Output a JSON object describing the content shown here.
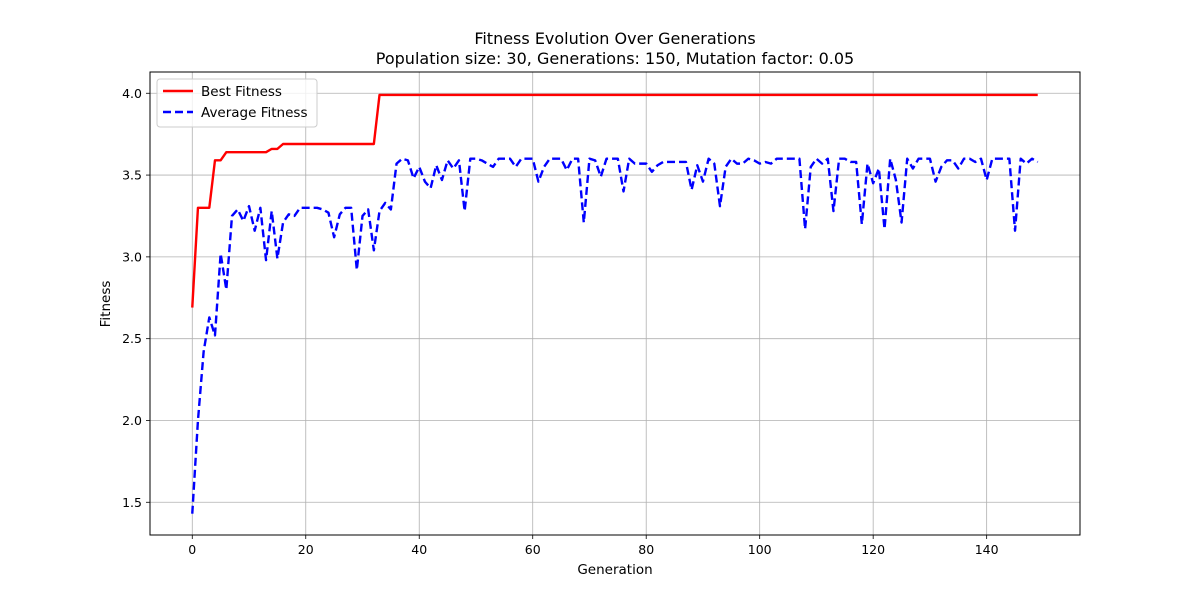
{
  "chart_data": {
    "type": "line",
    "title": "Fitness Evolution Over Generations",
    "subtitle": "Population size: 30, Generations: 150, Mutation factor: 0.05",
    "xlabel": "Generation",
    "ylabel": "Fitness",
    "xlim": [
      -7.45,
      156.45
    ],
    "ylim": [
      1.3,
      4.13
    ],
    "xticks": [
      0,
      20,
      40,
      60,
      80,
      100,
      120,
      140
    ],
    "xtick_labels": [
      "0",
      "20",
      "40",
      "60",
      "80",
      "100",
      "120",
      "140"
    ],
    "yticks": [
      1.5,
      2.0,
      2.5,
      3.0,
      3.5,
      4.0
    ],
    "ytick_labels": [
      "1.5",
      "2.0",
      "2.5",
      "3.0",
      "3.5",
      "4.0"
    ],
    "grid": true,
    "legend_position": "upper-left",
    "x_start": 0,
    "series": [
      {
        "name": "Best Fitness",
        "color": "#ff0000",
        "style": "solid",
        "values": [
          2.69,
          3.3,
          3.3,
          3.3,
          3.59,
          3.59,
          3.64,
          3.64,
          3.64,
          3.64,
          3.64,
          3.64,
          3.64,
          3.64,
          3.66,
          3.66,
          3.69,
          3.69,
          3.69,
          3.69,
          3.69,
          3.69,
          3.69,
          3.69,
          3.69,
          3.69,
          3.69,
          3.69,
          3.69,
          3.69,
          3.69,
          3.69,
          3.69,
          3.99,
          3.99,
          3.99,
          3.99,
          3.99,
          3.99,
          3.99,
          3.99,
          3.99,
          3.99,
          3.99,
          3.99,
          3.99,
          3.99,
          3.99,
          3.99,
          3.99,
          3.99,
          3.99,
          3.99,
          3.99,
          3.99,
          3.99,
          3.99,
          3.99,
          3.99,
          3.99,
          3.99,
          3.99,
          3.99,
          3.99,
          3.99,
          3.99,
          3.99,
          3.99,
          3.99,
          3.99,
          3.99,
          3.99,
          3.99,
          3.99,
          3.99,
          3.99,
          3.99,
          3.99,
          3.99,
          3.99,
          3.99,
          3.99,
          3.99,
          3.99,
          3.99,
          3.99,
          3.99,
          3.99,
          3.99,
          3.99,
          3.99,
          3.99,
          3.99,
          3.99,
          3.99,
          3.99,
          3.99,
          3.99,
          3.99,
          3.99,
          3.99,
          3.99,
          3.99,
          3.99,
          3.99,
          3.99,
          3.99,
          3.99,
          3.99,
          3.99,
          3.99,
          3.99,
          3.99,
          3.99,
          3.99,
          3.99,
          3.99,
          3.99,
          3.99,
          3.99,
          3.99,
          3.99,
          3.99,
          3.99,
          3.99,
          3.99,
          3.99,
          3.99,
          3.99,
          3.99,
          3.99,
          3.99,
          3.99,
          3.99,
          3.99,
          3.99,
          3.99,
          3.99,
          3.99,
          3.99,
          3.99,
          3.99,
          3.99,
          3.99,
          3.99,
          3.99,
          3.99,
          3.99,
          3.99,
          3.99
        ]
      },
      {
        "name": "Average Fitness",
        "color": "#0000ff",
        "style": "dashed",
        "values": [
          1.43,
          2.0,
          2.42,
          2.63,
          2.52,
          3.02,
          2.8,
          3.25,
          3.29,
          3.22,
          3.31,
          3.16,
          3.3,
          2.98,
          3.28,
          2.99,
          3.21,
          3.26,
          3.25,
          3.3,
          3.3,
          3.3,
          3.3,
          3.29,
          3.27,
          3.12,
          3.26,
          3.3,
          3.3,
          2.92,
          3.25,
          3.29,
          3.04,
          3.28,
          3.33,
          3.29,
          3.57,
          3.6,
          3.59,
          3.48,
          3.55,
          3.46,
          3.42,
          3.56,
          3.47,
          3.59,
          3.54,
          3.59,
          3.28,
          3.6,
          3.6,
          3.59,
          3.57,
          3.55,
          3.6,
          3.6,
          3.6,
          3.55,
          3.6,
          3.6,
          3.6,
          3.46,
          3.55,
          3.6,
          3.6,
          3.6,
          3.53,
          3.6,
          3.6,
          3.21,
          3.6,
          3.59,
          3.49,
          3.6,
          3.6,
          3.6,
          3.4,
          3.6,
          3.57,
          3.57,
          3.57,
          3.52,
          3.56,
          3.58,
          3.58,
          3.58,
          3.58,
          3.58,
          3.41,
          3.56,
          3.46,
          3.6,
          3.57,
          3.31,
          3.55,
          3.6,
          3.57,
          3.57,
          3.6,
          3.59,
          3.57,
          3.58,
          3.57,
          3.6,
          3.6,
          3.6,
          3.6,
          3.6,
          3.17,
          3.55,
          3.6,
          3.57,
          3.6,
          3.28,
          3.6,
          3.6,
          3.58,
          3.58,
          3.2,
          3.57,
          3.45,
          3.54,
          3.17,
          3.6,
          3.47,
          3.21,
          3.6,
          3.54,
          3.6,
          3.6,
          3.6,
          3.46,
          3.55,
          3.59,
          3.59,
          3.54,
          3.6,
          3.6,
          3.58,
          3.6,
          3.47,
          3.6,
          3.6,
          3.6,
          3.6,
          3.16,
          3.6,
          3.57,
          3.6,
          3.58
        ]
      }
    ]
  }
}
